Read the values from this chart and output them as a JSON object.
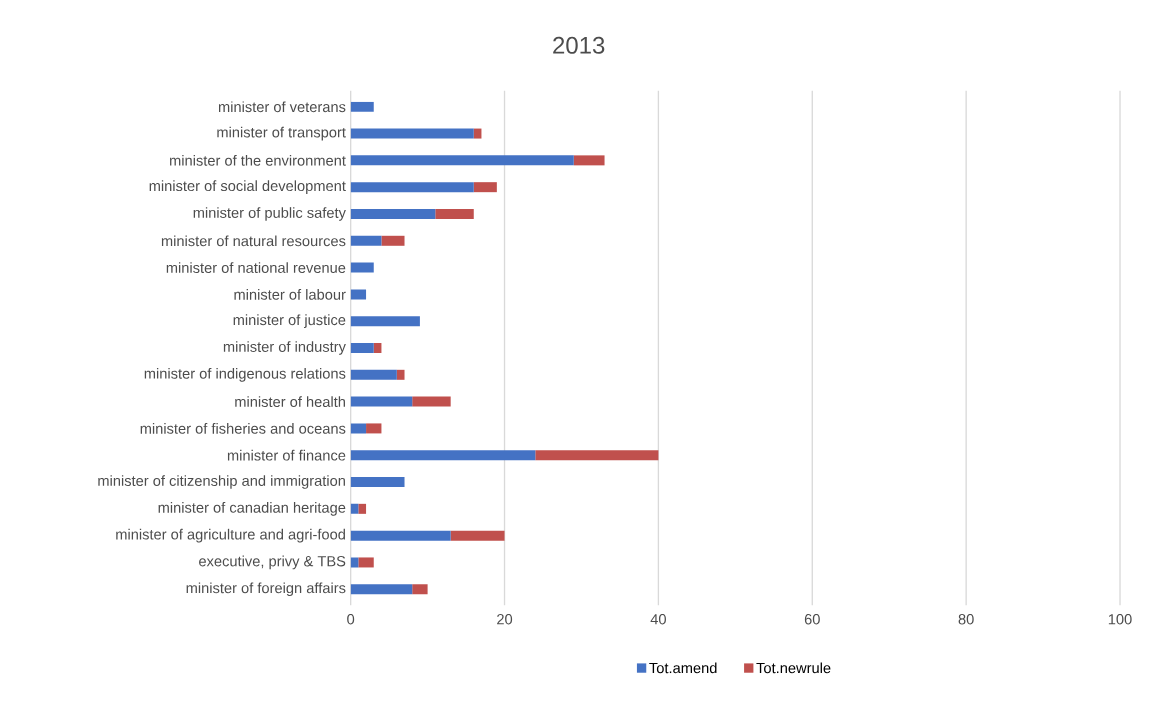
{
  "chart_data": {
    "type": "bar",
    "orientation": "horizontal",
    "stacked": true,
    "title": "2013",
    "categories": [
      "minister of veterans",
      "minister of transport",
      "minister of the environment",
      "minister of social development",
      "minister of public safety",
      "minister of natural resources",
      "minister of national revenue",
      "minister of labour",
      "minister of justice",
      "minister of industry",
      "minister of indigenous relations",
      "minister of health",
      "minister of fisheries and oceans",
      "minister of finance",
      "minister of citizenship and immigration",
      "minister of canadian heritage",
      "minister of agriculture and agri-food",
      "executive, privy & TBS",
      "minister of foreign affairs"
    ],
    "series": [
      {
        "name": "Tot.amend",
        "color": "#4472c4",
        "values": [
          3,
          16,
          29,
          16,
          11,
          4,
          3,
          2,
          9,
          3,
          6,
          8,
          2,
          24,
          7,
          1,
          13,
          1,
          8
        ]
      },
      {
        "name": "Tot.newrule",
        "color": "#c0504d",
        "values": [
          0,
          1,
          4,
          3,
          5,
          3,
          0,
          0,
          0,
          1,
          1,
          5,
          2,
          16,
          0,
          1,
          7,
          2,
          2
        ]
      }
    ],
    "xlim": [
      0,
      100
    ],
    "xticks": [
      0,
      20,
      40,
      60,
      80,
      100
    ],
    "grid": "x",
    "legend": "bottom"
  }
}
